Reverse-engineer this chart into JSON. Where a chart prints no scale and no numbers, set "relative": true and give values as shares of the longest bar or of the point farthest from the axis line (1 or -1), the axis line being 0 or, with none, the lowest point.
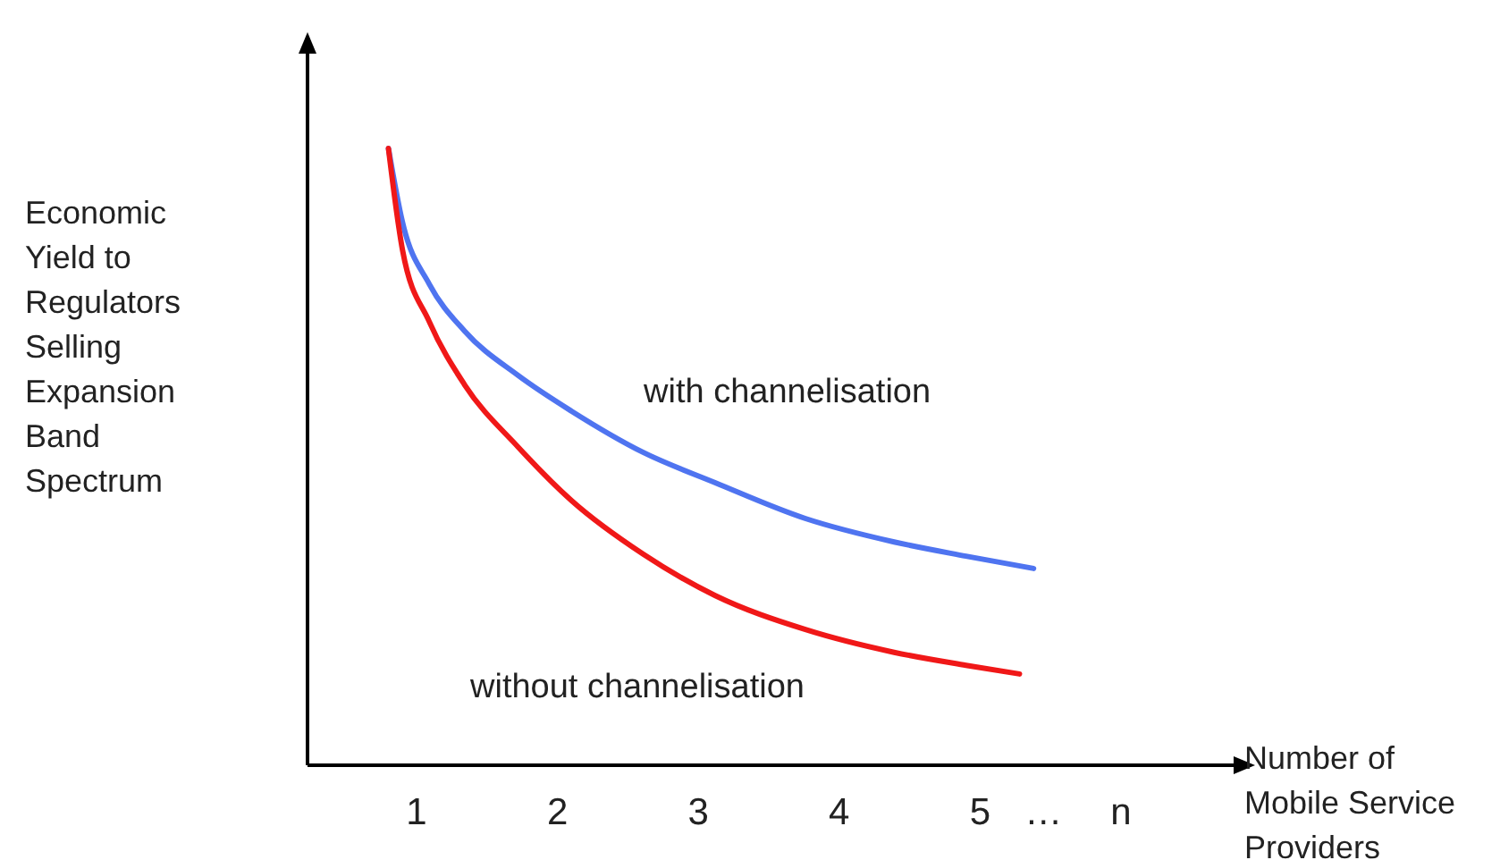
{
  "chart_data": {
    "type": "line",
    "relative": true,
    "xlabel": "Number of Mobile Service Providers",
    "ylabel": "Economic Yield to Regulators Selling Expansion Band Spectrum",
    "xlim": [
      0.2,
      6.8
    ],
    "xticks": [
      1,
      2,
      3,
      4,
      5,
      {
        "value": 5.45,
        "label": "…"
      },
      {
        "value": 6,
        "label": "n"
      }
    ],
    "grid": false,
    "legend": false,
    "marker": "none",
    "line_style": "solid",
    "tick_labels": "x",
    "series": [
      {
        "name": "with channelisation",
        "color": "#4f74f0",
        "x": [
          0.8,
          0.9,
          1.09,
          1.34,
          1.72,
          2.1,
          2.61,
          3.12,
          3.76,
          4.39,
          4.9,
          5.38
        ],
        "values": [
          1,
          0.88,
          0.78,
          0.704,
          0.632,
          0.574,
          0.507,
          0.458,
          0.4,
          0.362,
          0.339,
          0.319
        ]
      },
      {
        "name": "without channelisation",
        "color": "#f01818",
        "x": [
          0.8,
          0.9,
          1.09,
          1.34,
          1.72,
          2.1,
          2.61,
          3.12,
          3.76,
          4.39,
          4.9,
          5.28
        ],
        "values": [
          1,
          0.835,
          0.719,
          0.617,
          0.516,
          0.429,
          0.342,
          0.275,
          0.22,
          0.183,
          0.162,
          0.148
        ]
      }
    ]
  }
}
